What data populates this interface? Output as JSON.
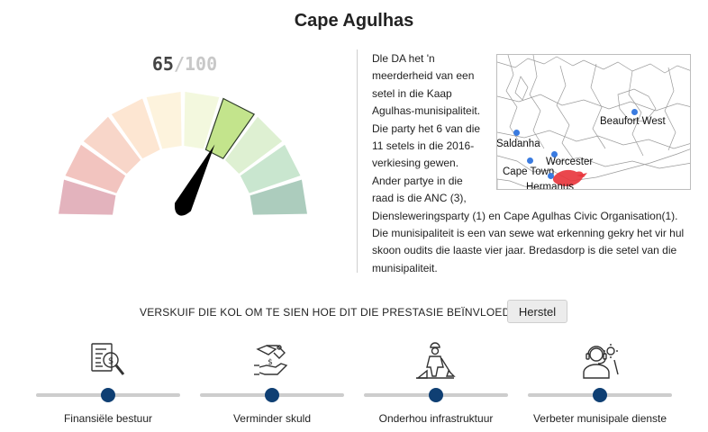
{
  "page": {
    "title": "Cape Agulhas"
  },
  "gauge": {
    "score": "65",
    "max": "/100",
    "value_fraction": 0.65,
    "segment_colors": [
      "#e3b3bd",
      "#f2c4bf",
      "#f8d6c9",
      "#fde6d2",
      "#fdf3dd",
      "#f3f8de",
      "#c3e48c",
      "#def0d2",
      "#c9e6cf",
      "#acccbd"
    ],
    "active_segment": 6,
    "active_border": "#2f3d2a",
    "needle_color": "#000000"
  },
  "description": {
    "text": "Dle DA het 'n meerderheid van een setel in die Kaap Agulhas-munisipaliteit. Die party het 6 van die 11 setels in die 2016-verkiesing gewen. Ander partye in die raad is die ANC (3), Diensleweringsparty (1) en Cape Agulhas Civic Organisation(1). Die munisipaliteit is een van sewe wat erkenning gekry het vir hul skoon oudits die laaste vier jaar. Bredasdorp is die setel van die munisipaliteit."
  },
  "map": {
    "cities": [
      "Beaufort West",
      "Saldanha",
      "Worcester",
      "Cape Town",
      "Hermanus"
    ],
    "highlight_color": "#e8333a",
    "dot_color": "#3a7be0"
  },
  "controls": {
    "instruction": "VERSKUIF DIE KOL OM TE SIEN HOE DIT DIE PRESTASIE BEÏNVLOED.",
    "reset_label": "Herstel"
  },
  "sliders": [
    {
      "label": "Finansiële bestuur",
      "icon": "financial-report-icon",
      "value": 0.5
    },
    {
      "label": "Verminder skuld",
      "icon": "debt-handshake-icon",
      "value": 0.5
    },
    {
      "label": "Onderhou infrastruktuur",
      "icon": "construction-worker-icon",
      "value": 0.5
    },
    {
      "label": "Verbeter munisipale dienste",
      "icon": "service-agent-icon",
      "value": 0.5
    }
  ]
}
